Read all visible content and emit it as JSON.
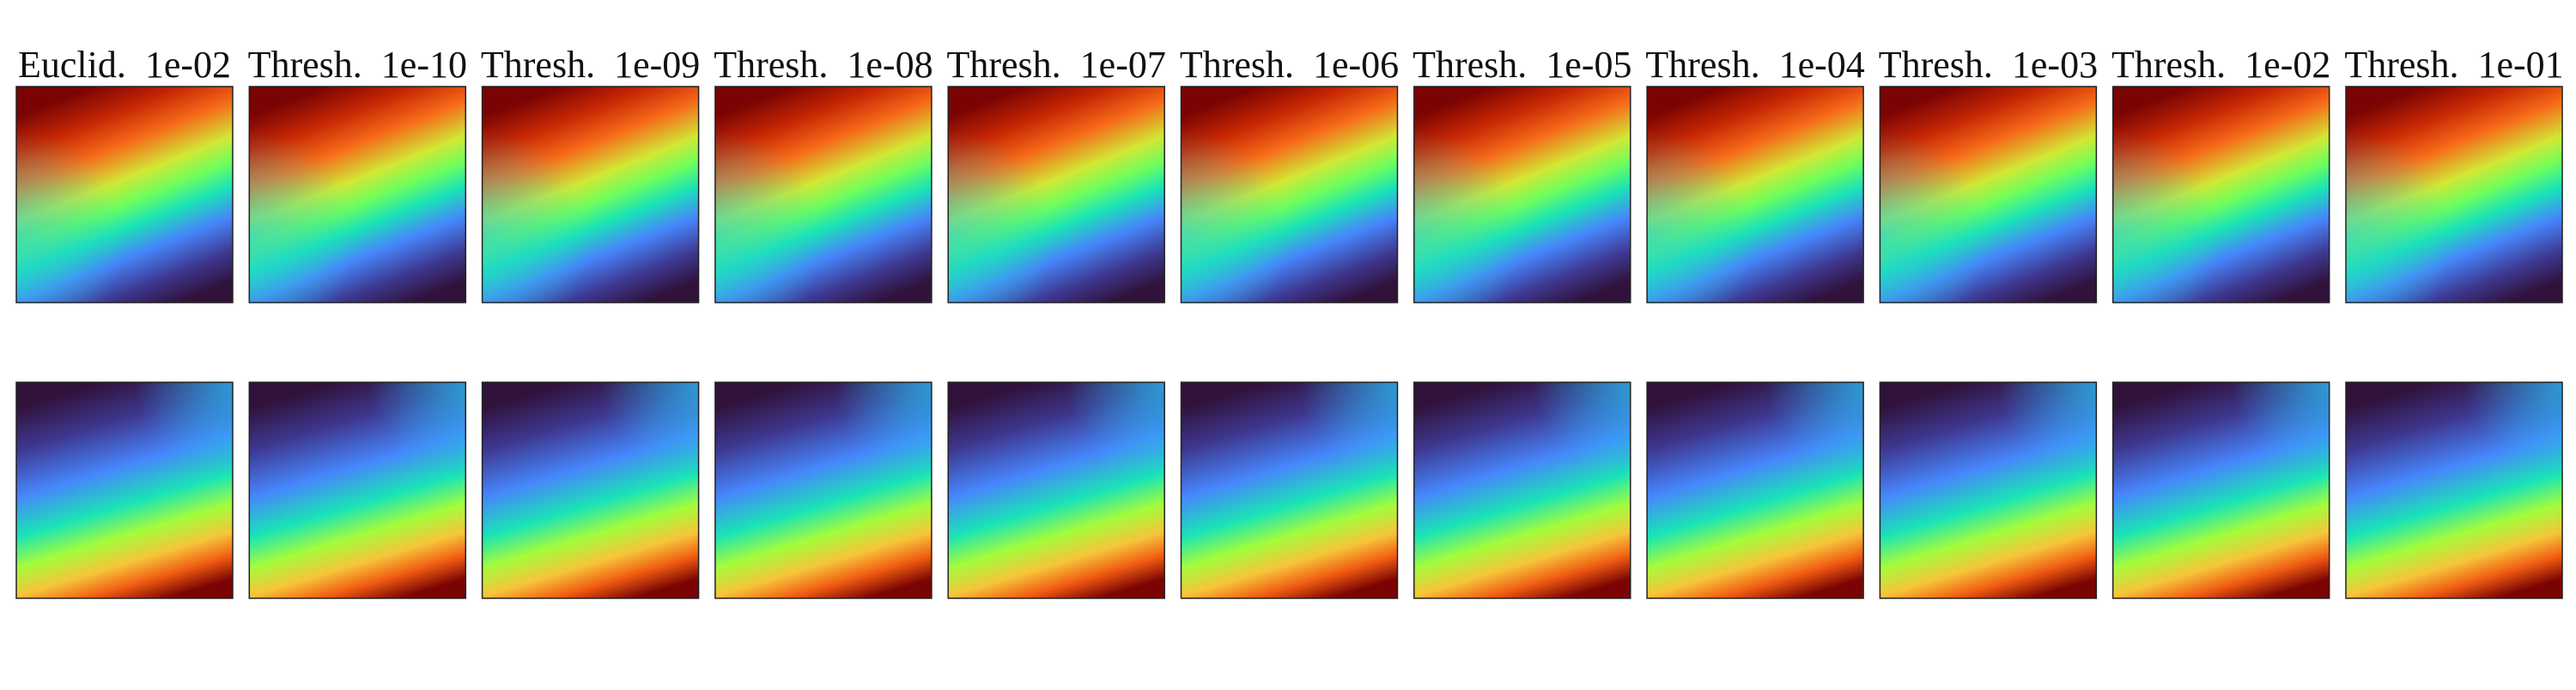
{
  "panels": [
    {
      "title": "Euclid.  1e-02"
    },
    {
      "title": "Thresh.  1e-10"
    },
    {
      "title": "Thresh.  1e-09"
    },
    {
      "title": "Thresh.  1e-08"
    },
    {
      "title": "Thresh.  1e-07"
    },
    {
      "title": "Thresh.  1e-06"
    },
    {
      "title": "Thresh.  1e-05"
    },
    {
      "title": "Thresh.  1e-04"
    },
    {
      "title": "Thresh.  1e-03"
    },
    {
      "title": "Thresh.  1e-02"
    },
    {
      "title": "Thresh.  1e-01"
    }
  ]
}
